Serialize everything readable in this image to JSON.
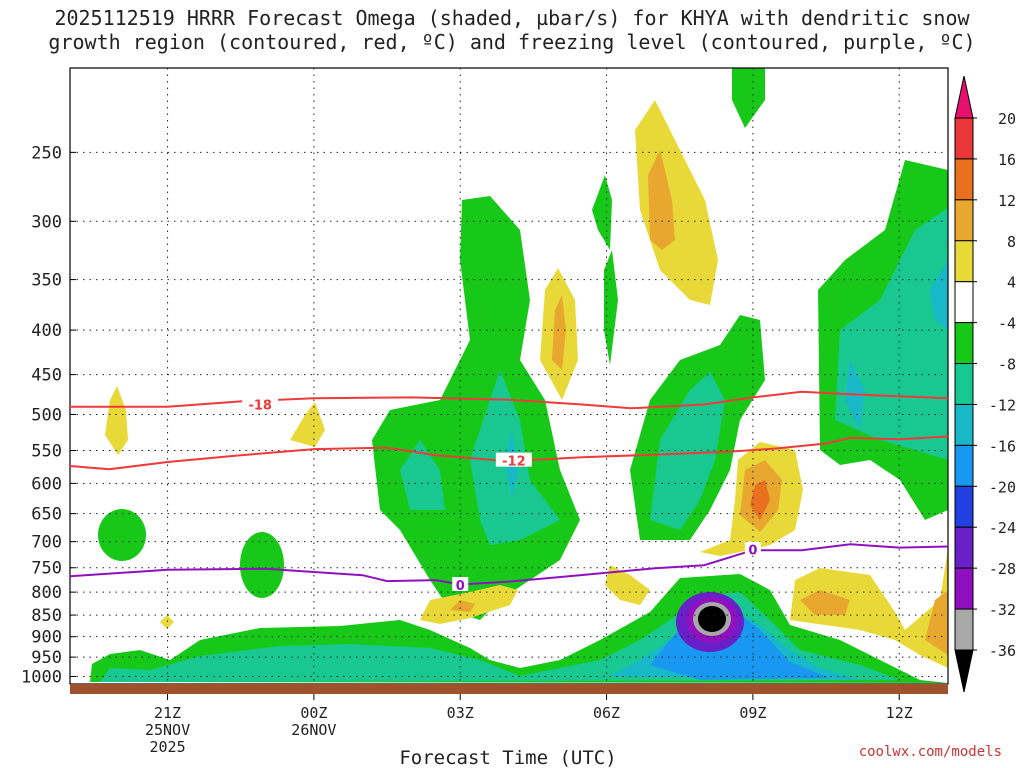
{
  "chart_data": {
    "type": "heatmap",
    "title_lines": [
      "2025112519 HRRR Forecast Omega (shaded, µbar/s) for KHYA with dendritic snow",
      "growth region (contoured, red, ºC) and freezing level (contoured, purple, ºC)"
    ],
    "xlabel": "Forecast Time (UTC)",
    "ylabel": "",
    "x_ticks": [
      {
        "label": [
          "21Z",
          "25NOV",
          "2025"
        ],
        "hour": 2
      },
      {
        "label": [
          "00Z",
          "26NOV"
        ],
        "hour": 5
      },
      {
        "label": [
          "03Z"
        ],
        "hour": 8
      },
      {
        "label": [
          "06Z"
        ],
        "hour": 11
      },
      {
        "label": [
          "09Z"
        ],
        "hour": 14
      },
      {
        "label": [
          "12Z"
        ],
        "hour": 17
      }
    ],
    "x_range_hours": [
      0,
      18
    ],
    "y_ticks": [
      250,
      300,
      350,
      400,
      450,
      500,
      550,
      600,
      650,
      700,
      750,
      800,
      850,
      900,
      950,
      1000
    ],
    "y_range_hpa": [
      200,
      1020
    ],
    "y_scale": "log-pressure",
    "grid": true,
    "colorbar": {
      "labels": [
        "20",
        "16",
        "12",
        "8",
        "4",
        "-4",
        "-8",
        "-12",
        "-16",
        "-20",
        "-24",
        "-28",
        "-32",
        "-36"
      ],
      "colors": [
        "#e8106e",
        "#e83838",
        "#e8701e",
        "#e8a830",
        "#e8d838",
        "#ffffff",
        "#18c818",
        "#18c890",
        "#18b8c8",
        "#1898f0",
        "#2040e0",
        "#6820c8",
        "#9010c0",
        "#a8a8a8",
        "#000000"
      ]
    },
    "contour_lines": [
      {
        "name": "-18",
        "color": "#ee3a3a",
        "points": [
          [
            0,
            490
          ],
          [
            2,
            490
          ],
          [
            3.5,
            483
          ],
          [
            5,
            479
          ],
          [
            7,
            478
          ],
          [
            9,
            481
          ],
          [
            10.5,
            487
          ],
          [
            11.5,
            492
          ],
          [
            13,
            487
          ],
          [
            14,
            478
          ],
          [
            15,
            471
          ],
          [
            16,
            474
          ],
          [
            18,
            479
          ]
        ]
      },
      {
        "name": "-12",
        "color": "#ee3a3a",
        "points": [
          [
            0,
            573
          ],
          [
            0.8,
            578
          ],
          [
            2,
            567
          ],
          [
            3.5,
            557
          ],
          [
            5,
            548
          ],
          [
            6.5,
            546
          ],
          [
            7.5,
            557
          ],
          [
            9,
            566
          ],
          [
            10.5,
            560
          ],
          [
            12,
            556
          ],
          [
            13.5,
            552
          ],
          [
            14.5,
            547
          ],
          [
            15.5,
            540
          ],
          [
            16,
            532
          ],
          [
            17,
            534
          ],
          [
            18,
            530
          ]
        ]
      },
      {
        "name": "0",
        "color": "#9010c0",
        "points": [
          [
            0,
            767
          ],
          [
            2,
            754
          ],
          [
            4,
            752
          ],
          [
            6,
            765
          ],
          [
            6.5,
            777
          ],
          [
            7.5,
            775
          ],
          [
            8,
            784
          ],
          [
            9,
            778
          ],
          [
            10,
            769
          ],
          [
            11,
            760
          ],
          [
            12,
            751
          ],
          [
            13,
            745
          ],
          [
            14,
            716
          ],
          [
            15,
            716
          ],
          [
            16,
            705
          ],
          [
            17,
            711
          ],
          [
            18,
            709
          ]
        ]
      }
    ],
    "contour_labels": [
      {
        "text": "-18",
        "hour": 3.9,
        "p": 487
      },
      {
        "text": "-12",
        "hour": 9.1,
        "p": 565
      },
      {
        "text": "0",
        "hour": 8.0,
        "p": 785
      },
      {
        "text": "0",
        "hour": 14.0,
        "p": 715
      }
    ],
    "ground_band_color": "#a0522d"
  },
  "footer": {
    "credit": "coolwx.com/models"
  }
}
